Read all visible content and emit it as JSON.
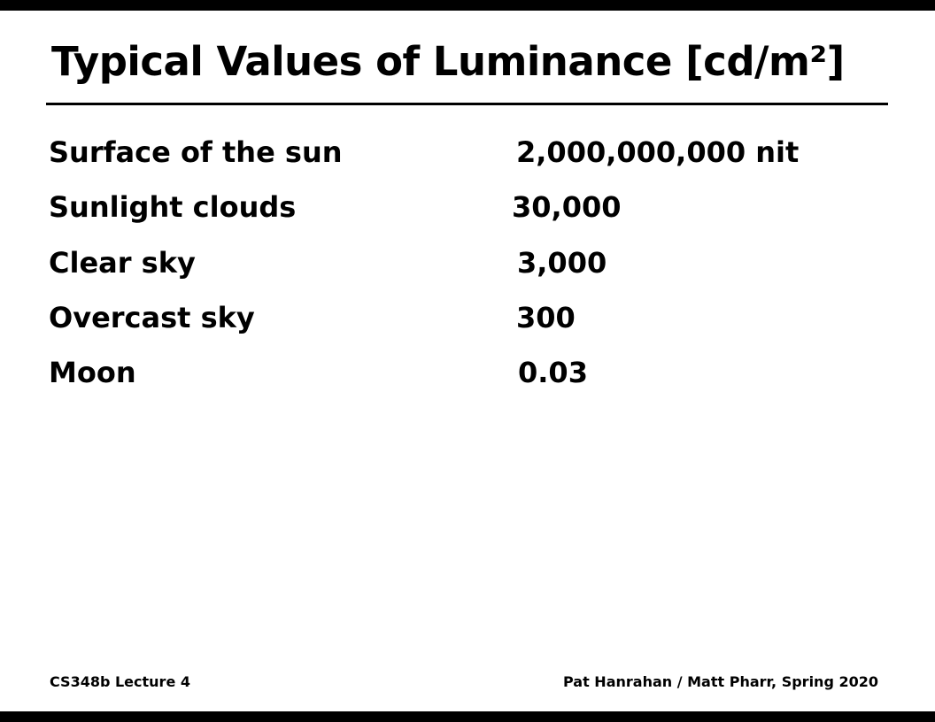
{
  "slide": {
    "title": "Typical Values of Luminance [cd/m²]"
  },
  "rows": [
    {
      "label": "Surface of the sun",
      "value": "2,000,000,000 nit"
    },
    {
      "label": "Sunlight clouds",
      "value": "30,000"
    },
    {
      "label": "Clear sky",
      "value": "3,000"
    },
    {
      "label": "Overcast sky",
      "value": "300"
    },
    {
      "label": "Moon",
      "value": "0.03"
    }
  ],
  "footer": {
    "left": "CS348b Lecture 4",
    "right": "Pat Hanrahan / Matt Pharr, Spring 2020"
  }
}
